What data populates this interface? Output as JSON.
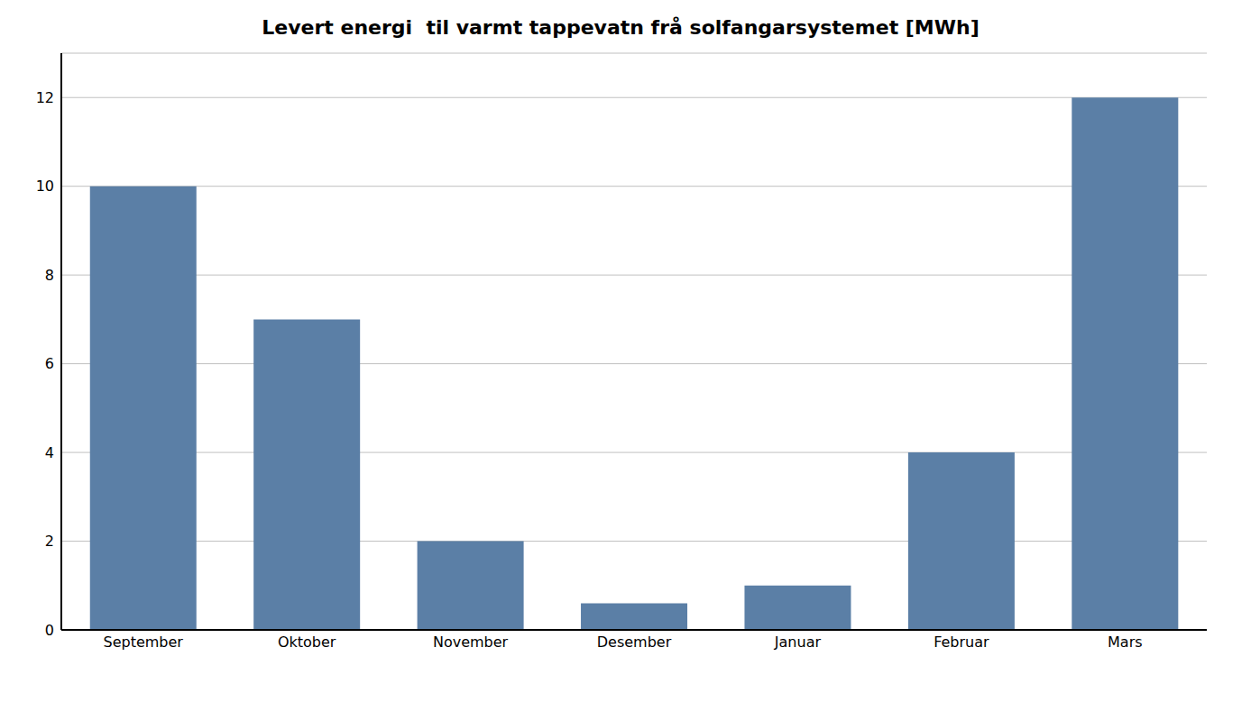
{
  "chart_data": {
    "type": "bar",
    "title": "Levert energi  til varmt tappevatn frå solfangarsystemet [MWh]",
    "categories": [
      "September",
      "Oktober",
      "November",
      "Desember",
      "Januar",
      "Februar",
      "Mars"
    ],
    "values": [
      10,
      7,
      2,
      0.6,
      1,
      4,
      12
    ],
    "color": "#5B7FA6",
    "ylim": [
      0,
      13
    ],
    "yticks": [
      0,
      2,
      4,
      6,
      8,
      10,
      12
    ],
    "grid": true
  }
}
